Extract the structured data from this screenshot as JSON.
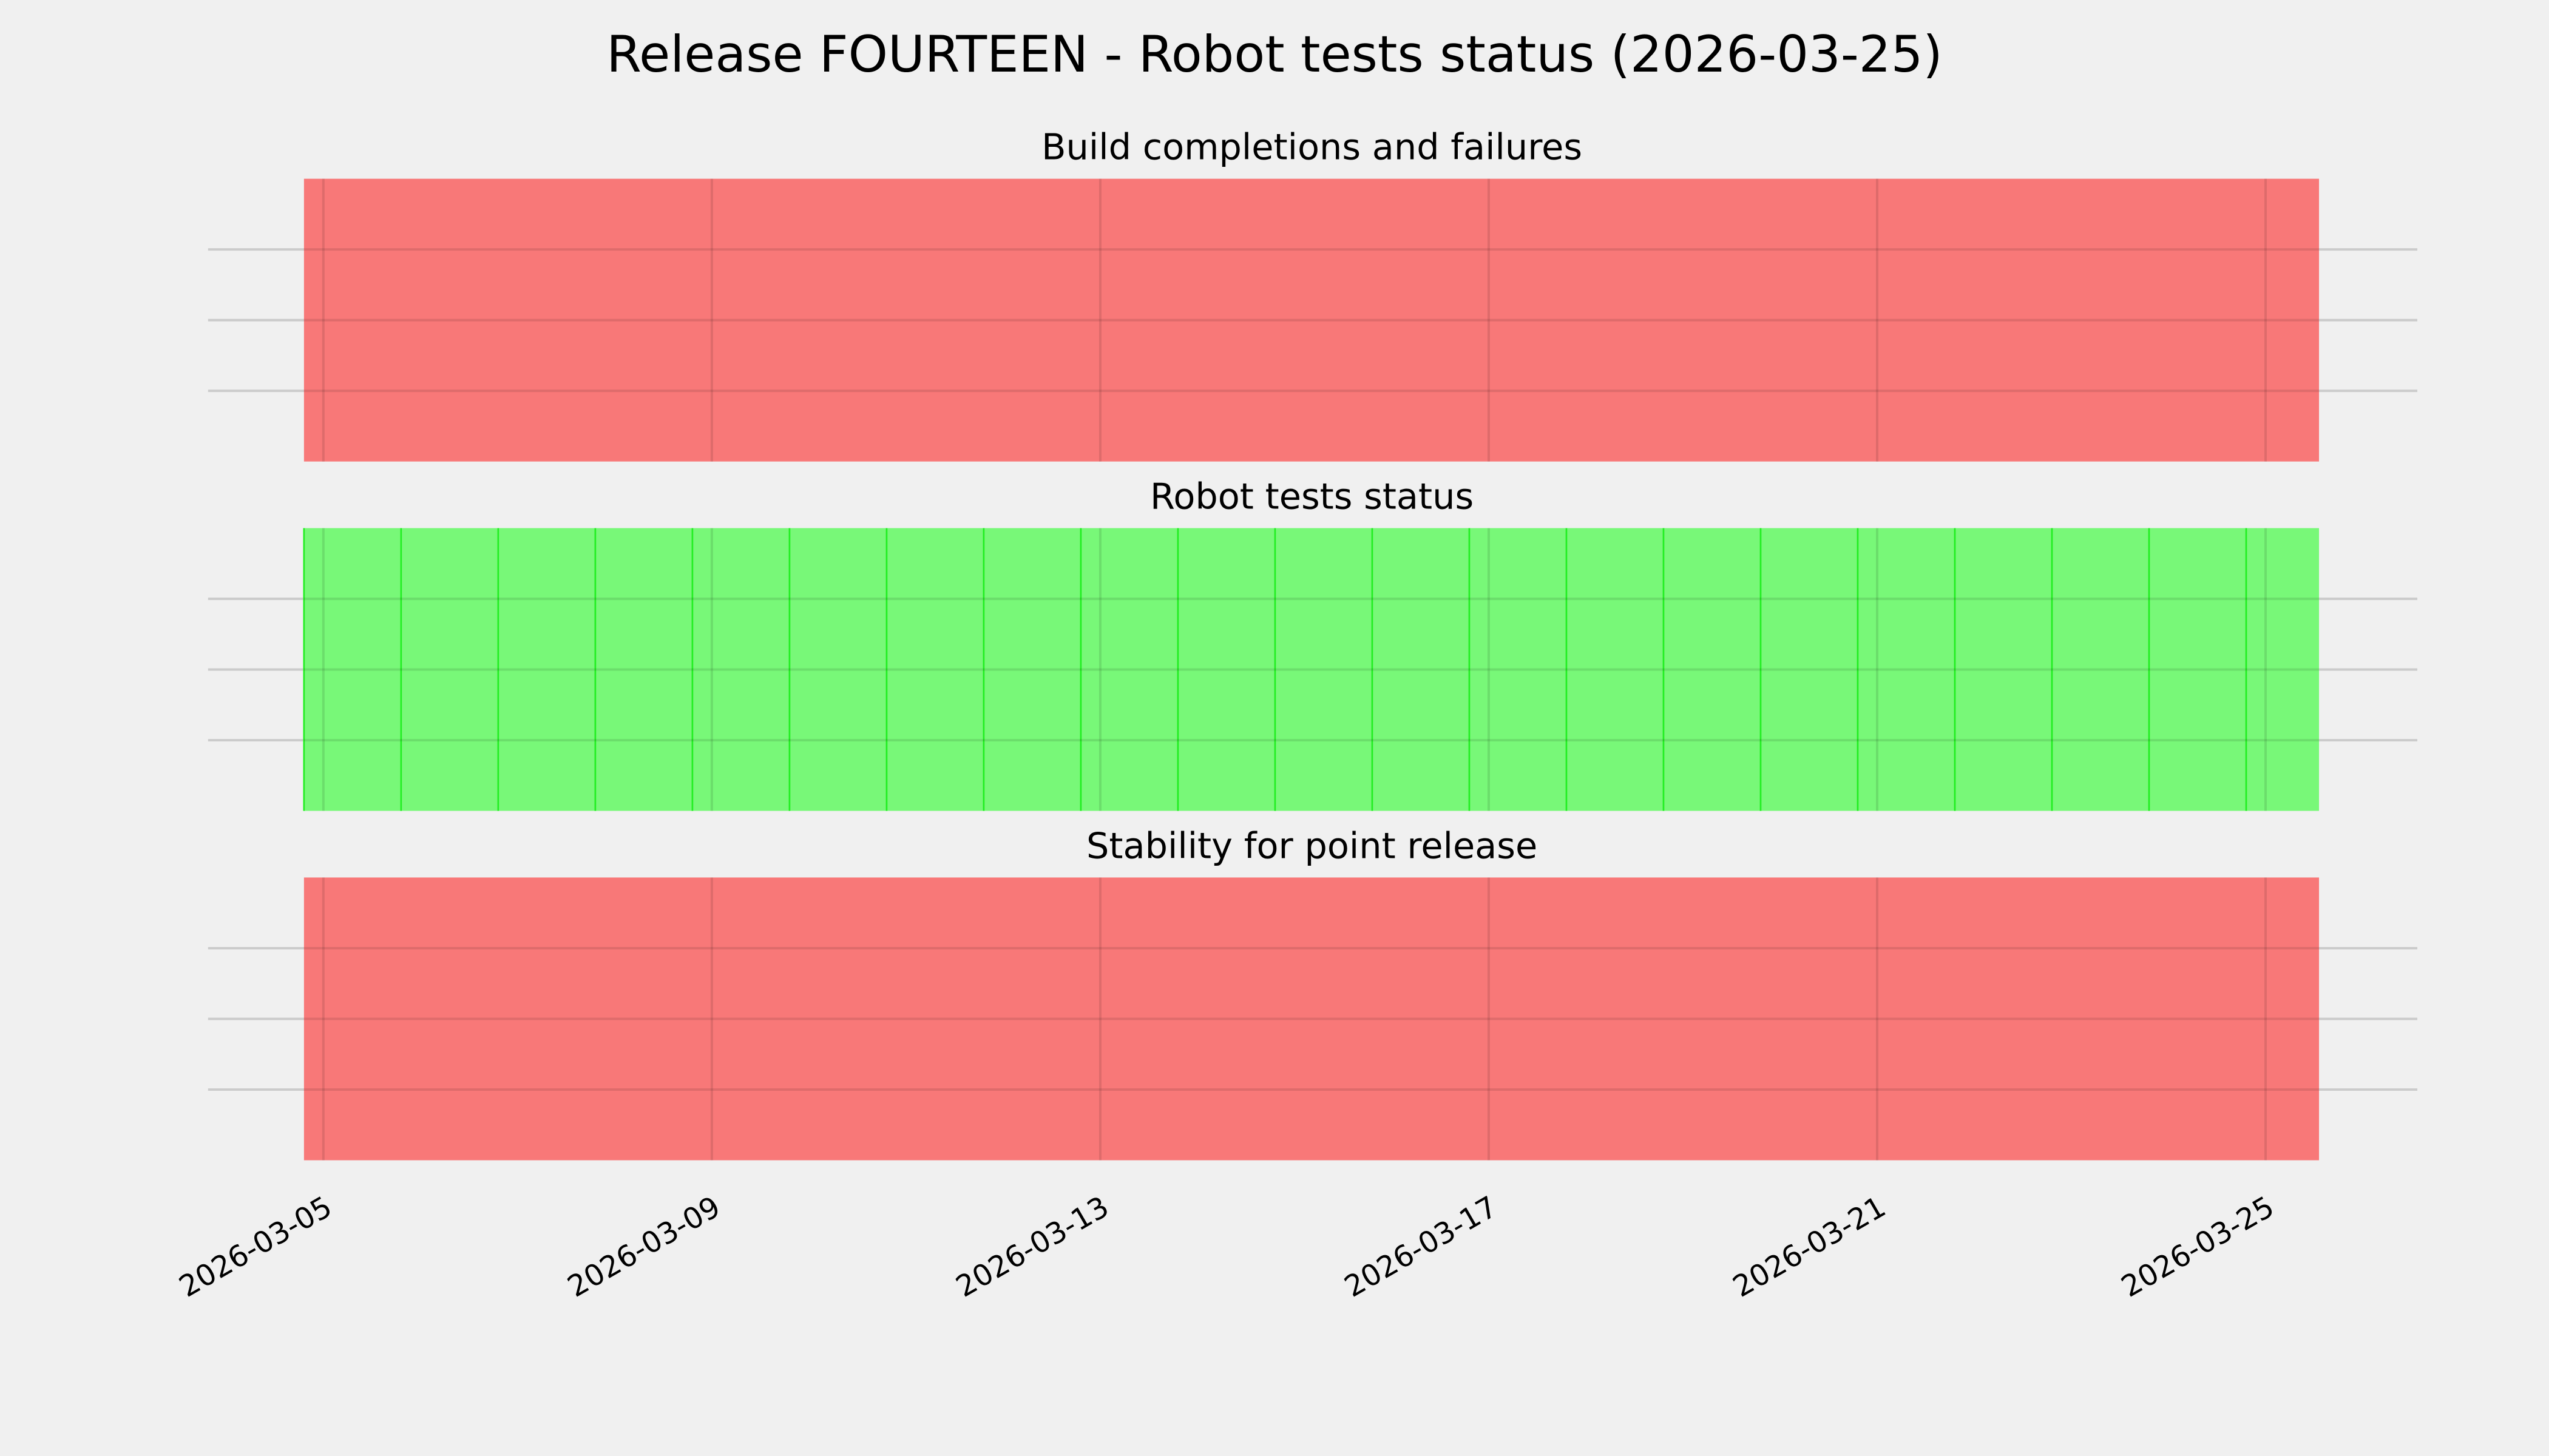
{
  "chart_data": {
    "title": "Release FOURTEEN - Robot tests status (2026-03-25)",
    "type": "timeline-spans",
    "xlim": [
      "2026-03-03T19:30",
      "2026-03-26T13:30"
    ],
    "x_ticks": [
      "2026-03-05",
      "2026-03-09",
      "2026-03-13",
      "2026-03-17",
      "2026-03-21",
      "2026-03-25"
    ],
    "grid": true,
    "colors": {
      "background": "#f0f0f0",
      "fail": "#f87878",
      "pass": "#78f878",
      "pass_edge": "#22ee22",
      "grid": "#cbcbcb"
    },
    "panels": [
      {
        "title": "Build completions and failures",
        "spans": [
          {
            "start": "2026-03-04T19:12",
            "end": "2026-03-25T13:12",
            "status": "fail"
          }
        ]
      },
      {
        "title": "Robot tests status",
        "daily_spans": {
          "first_start": "2026-03-04T19:12",
          "count": 21,
          "last_end": "2026-03-25T13:12",
          "status": "pass"
        }
      },
      {
        "title": "Stability for point release",
        "spans": [
          {
            "start": "2026-03-04T19:12",
            "end": "2026-03-25T13:12",
            "status": "fail"
          }
        ]
      }
    ]
  }
}
